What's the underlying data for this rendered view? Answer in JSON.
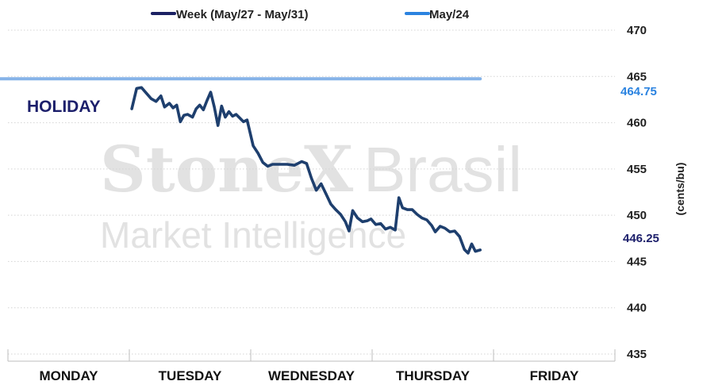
{
  "legend": [
    {
      "label": "Week (May/27 - May/31)",
      "color": "#1b2163"
    },
    {
      "label": "May/24",
      "color": "#2b83e0"
    }
  ],
  "watermark": {
    "brand": "StoneX",
    "brand2": "Brasil",
    "sub": "Market Intelligence"
  },
  "annotations": {
    "holiday": "HOLIDAY",
    "last_week": "446.25",
    "reference": "464.75"
  },
  "chart_data": {
    "type": "line",
    "xlabel": "",
    "ylabel": "(cents/bu)",
    "ylim": [
      435,
      470
    ],
    "yticks": [
      435,
      440,
      445,
      450,
      455,
      460,
      465,
      470
    ],
    "categories": [
      "MONDAY",
      "TUESDAY",
      "WEDNESDAY",
      "THURSDAY",
      "FRIDAY"
    ],
    "grid": true,
    "legend_position": "top",
    "series": [
      {
        "name": "Week (May/27 - May/31)",
        "color": "#1e3f6e",
        "points": [
          [
            1.02,
            461.5
          ],
          [
            1.06,
            463.7
          ],
          [
            1.1,
            463.8
          ],
          [
            1.14,
            463.2
          ],
          [
            1.18,
            462.6
          ],
          [
            1.22,
            462.3
          ],
          [
            1.26,
            462.9
          ],
          [
            1.29,
            461.7
          ],
          [
            1.33,
            462.1
          ],
          [
            1.36,
            461.6
          ],
          [
            1.39,
            461.9
          ],
          [
            1.42,
            460.1
          ],
          [
            1.45,
            460.8
          ],
          [
            1.48,
            460.9
          ],
          [
            1.52,
            460.6
          ],
          [
            1.55,
            461.5
          ],
          [
            1.58,
            461.9
          ],
          [
            1.61,
            461.4
          ],
          [
            1.64,
            462.4
          ],
          [
            1.67,
            463.3
          ],
          [
            1.7,
            461.7
          ],
          [
            1.73,
            459.7
          ],
          [
            1.76,
            461.8
          ],
          [
            1.79,
            460.6
          ],
          [
            1.82,
            461.2
          ],
          [
            1.85,
            460.7
          ],
          [
            1.88,
            460.9
          ],
          [
            1.91,
            460.5
          ],
          [
            1.94,
            460.1
          ],
          [
            1.97,
            460.3
          ],
          [
            2.02,
            457.5
          ],
          [
            2.06,
            456.7
          ],
          [
            2.1,
            455.7
          ],
          [
            2.14,
            455.3
          ],
          [
            2.18,
            455.5
          ],
          [
            2.24,
            455.5
          ],
          [
            2.3,
            455.5
          ],
          [
            2.36,
            455.4
          ],
          [
            2.42,
            455.8
          ],
          [
            2.46,
            455.6
          ],
          [
            2.5,
            454.0
          ],
          [
            2.54,
            452.7
          ],
          [
            2.58,
            453.4
          ],
          [
            2.62,
            452.3
          ],
          [
            2.66,
            451.2
          ],
          [
            2.7,
            450.6
          ],
          [
            2.74,
            450.1
          ],
          [
            2.78,
            449.3
          ],
          [
            2.81,
            448.3
          ],
          [
            2.84,
            450.5
          ],
          [
            2.88,
            449.7
          ],
          [
            2.92,
            449.3
          ],
          [
            2.96,
            449.4
          ],
          [
            2.99,
            449.6
          ],
          [
            3.03,
            449.0
          ],
          [
            3.07,
            449.1
          ],
          [
            3.11,
            448.5
          ],
          [
            3.15,
            448.7
          ],
          [
            3.19,
            448.4
          ],
          [
            3.22,
            451.9
          ],
          [
            3.25,
            450.8
          ],
          [
            3.29,
            450.6
          ],
          [
            3.33,
            450.6
          ],
          [
            3.37,
            450.1
          ],
          [
            3.41,
            449.7
          ],
          [
            3.45,
            449.5
          ],
          [
            3.49,
            448.9
          ],
          [
            3.52,
            448.2
          ],
          [
            3.56,
            448.8
          ],
          [
            3.6,
            448.6
          ],
          [
            3.64,
            448.2
          ],
          [
            3.68,
            448.3
          ],
          [
            3.72,
            447.7
          ],
          [
            3.76,
            446.3
          ],
          [
            3.79,
            445.9
          ],
          [
            3.82,
            446.9
          ],
          [
            3.85,
            446.1
          ],
          [
            3.89,
            446.25
          ]
        ]
      },
      {
        "name": "May/24",
        "color": "#86b3e8",
        "points": [
          [
            -0.52,
            464.75
          ],
          [
            3.89,
            464.75
          ]
        ]
      }
    ]
  }
}
